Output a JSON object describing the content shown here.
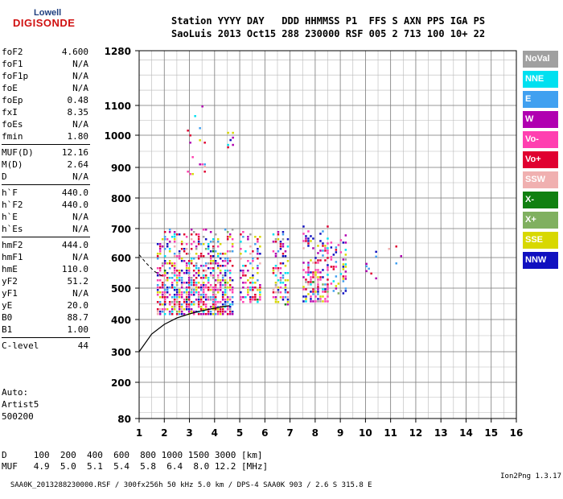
{
  "logo": {
    "line1": "Lowell",
    "line2": "DIGISONDE"
  },
  "header": {
    "line1": "Station YYYY DAY   DDD HHMMSS P1  FFS S AXN PPS IGA PS",
    "line2": "SaoLuis 2013 Oct15 288 230000 RSF 005 2 713 100 10+ 22"
  },
  "params": [
    {
      "label": "foF2",
      "value": "4.600"
    },
    {
      "label": "foF1",
      "value": "N/A"
    },
    {
      "label": "foF1p",
      "value": "N/A"
    },
    {
      "label": "foE",
      "value": "N/A"
    },
    {
      "label": "foEp",
      "value": "0.48"
    },
    {
      "label": "fxI",
      "value": "8.35"
    },
    {
      "label": "foEs",
      "value": "N/A"
    },
    {
      "label": "fmin",
      "value": "1.80"
    },
    {
      "label": "MUF(D)",
      "value": "12.16"
    },
    {
      "label": "M(D)",
      "value": "2.64"
    },
    {
      "label": "D",
      "value": "N/A"
    },
    {
      "label": "h`F",
      "value": "440.0"
    },
    {
      "label": "h`F2",
      "value": "440.0"
    },
    {
      "label": "h`E",
      "value": "N/A"
    },
    {
      "label": "h`Es",
      "value": "N/A"
    },
    {
      "label": "hmF2",
      "value": "444.0"
    },
    {
      "label": "hmF1",
      "value": "N/A"
    },
    {
      "label": "hmE",
      "value": "110.0"
    },
    {
      "label": "yF2",
      "value": "51.2"
    },
    {
      "label": "yF1",
      "value": "N/A"
    },
    {
      "label": "yE",
      "value": "20.0"
    },
    {
      "label": "B0",
      "value": "88.7"
    },
    {
      "label": "B1",
      "value": "1.00"
    },
    {
      "label": "C-level",
      "value": "44"
    }
  ],
  "param_groups": [
    8,
    3,
    4,
    8,
    1
  ],
  "auto": {
    "line1": "Auto:",
    "line2": "Artist5",
    "line3": "500200"
  },
  "legend": [
    {
      "label": "NoVal",
      "color": "#a0a0a0"
    },
    {
      "label": "NNE",
      "color": "#00e0f0"
    },
    {
      "label": "E",
      "color": "#40a0f0"
    },
    {
      "label": "W",
      "color": "#b000b0"
    },
    {
      "label": "Vo-",
      "color": "#ff40b0"
    },
    {
      "label": "Vo+",
      "color": "#e00030"
    },
    {
      "label": "SSW",
      "color": "#f0b0b0"
    },
    {
      "label": "X-",
      "color": "#108010"
    },
    {
      "label": "X+",
      "color": "#80b060"
    },
    {
      "label": "SSE",
      "color": "#d8d800"
    },
    {
      "label": "NNW",
      "color": "#1010c0"
    }
  ],
  "d_table": {
    "d_line": "D     100  200  400  600  800 1000 1500 3000 [km]",
    "muf_line": "MUF   4.9  5.0  5.1  5.4  5.8  6.4  8.0 12.2 [MHz]"
  },
  "footer": {
    "left": "SAA0K_2013288230000.RSF / 300fx256h 50 kHz 5.0 km / DPS-4 SAA0K 903 / 2.6 S 315.8 E",
    "right": "Ion2Png 1.3.17"
  },
  "chart_data": {
    "type": "scatter",
    "xlim": [
      1,
      16
    ],
    "ylim": [
      80,
      1280
    ],
    "x_ticks": [
      1,
      2,
      3,
      4,
      5,
      6,
      7,
      8,
      9,
      10,
      11,
      12,
      13,
      14,
      15,
      16
    ],
    "y_ticks": [
      80,
      200,
      300,
      400,
      500,
      600,
      700,
      800,
      900,
      1000,
      1100,
      1280
    ],
    "grid": true,
    "scale": "log-like virtual height scale",
    "echo_clusters": [
      {
        "f": [
          1.7,
          4.8
        ],
        "h": [
          410,
          700
        ],
        "density": 0.55
      },
      {
        "f": [
          5.0,
          5.9
        ],
        "h": [
          450,
          700
        ],
        "density": 0.35
      },
      {
        "f": [
          6.3,
          7.0
        ],
        "h": [
          445,
          700
        ],
        "density": 0.45
      },
      {
        "f": [
          7.5,
          8.6
        ],
        "h": [
          450,
          710
        ],
        "density": 0.45
      },
      {
        "f": [
          8.6,
          9.3
        ],
        "h": [
          480,
          680
        ],
        "density": 0.3
      },
      {
        "f": [
          10.0,
          10.5
        ],
        "h": [
          530,
          690
        ],
        "density": 0.12
      },
      {
        "f": [
          10.9,
          11.5
        ],
        "h": [
          580,
          650
        ],
        "density": 0.08
      },
      {
        "f": [
          2.9,
          3.8
        ],
        "h": [
          870,
          1100
        ],
        "density": 0.08
      },
      {
        "f": [
          4.5,
          4.75
        ],
        "h": [
          920,
          1060
        ],
        "density": 0.15
      }
    ],
    "profile_curve": [
      [
        1.0,
        300
      ],
      [
        1.5,
        355
      ],
      [
        2.0,
        385
      ],
      [
        2.5,
        405
      ],
      [
        3.0,
        418
      ],
      [
        3.5,
        428
      ],
      [
        4.0,
        436
      ],
      [
        4.4,
        442
      ],
      [
        4.6,
        444
      ]
    ],
    "dashed_curve": [
      [
        1.0,
        610
      ],
      [
        1.3,
        580
      ],
      [
        1.6,
        555
      ],
      [
        1.9,
        540
      ]
    ]
  }
}
